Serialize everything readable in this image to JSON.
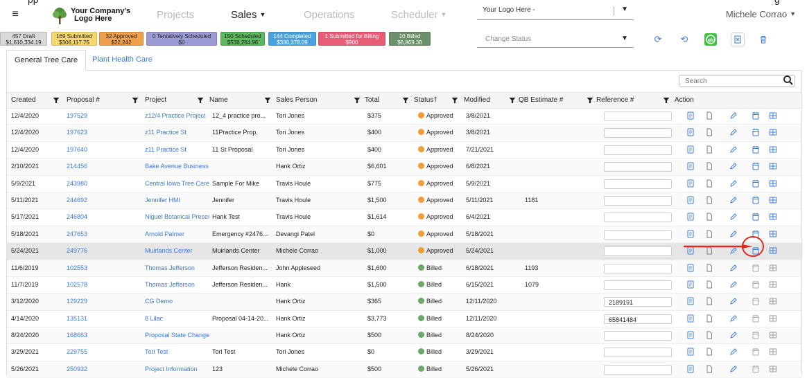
{
  "top_cut_text": [
    "pp",
    "g"
  ],
  "nav": {
    "logo_line1": "Your Company's",
    "logo_line2": "Logo Here",
    "links": [
      {
        "label": "Projects",
        "active": false,
        "caret": false
      },
      {
        "label": "Sales",
        "active": true,
        "caret": true
      },
      {
        "label": "Operations",
        "active": false,
        "caret": false
      },
      {
        "label": "Scheduler",
        "active": false,
        "caret": true
      }
    ],
    "logo_select_value": "Your Logo Here -",
    "user_name": "Michele Corrao"
  },
  "badges": [
    {
      "line1": "457 Draft",
      "line2": "$1,610,334.19",
      "bg": "#d9d9d9",
      "fg": "#222"
    },
    {
      "line1": "169 Submitted",
      "line2": "$306,117.75",
      "bg": "#f5d76e",
      "fg": "#222"
    },
    {
      "line1": "32 Approved",
      "line2": "$22,242",
      "bg": "#f0a04b",
      "fg": "#222"
    },
    {
      "line1": "0 Tentatively Scheduled",
      "line2": "$0",
      "bg": "#9b9bd6",
      "fg": "#222"
    },
    {
      "line1": "150 Scheduled",
      "line2": "$538,264.96",
      "bg": "#5cb85c",
      "fg": "#222"
    },
    {
      "line1": "144 Completed",
      "line2": "$330,378.09",
      "bg": "#4aa3df",
      "fg": "#fff"
    },
    {
      "line1": "1 Submitted for Billing",
      "line2": "$900",
      "bg": "#e85d75",
      "fg": "#fff"
    },
    {
      "line1": "10 Billed",
      "line2": "$8,869.38",
      "bg": "#6b8e6b",
      "fg": "#fff"
    }
  ],
  "change_status_placeholder": "Change Status",
  "tabs": [
    {
      "label": "General Tree Care",
      "active": true
    },
    {
      "label": "Plant Health Care",
      "active": false
    }
  ],
  "search_placeholder": "Search",
  "columns": [
    "Created",
    "Proposal #",
    "Project",
    "Name",
    "Sales Person",
    "Total",
    "Status†",
    "Modified",
    "QB Estimate #",
    "Reference #",
    "Action"
  ],
  "status_colors": {
    "Approved": "#f39c34",
    "Billed": "#6aa86a"
  },
  "rows": [
    {
      "created": "12/4/2020",
      "proposal": "197529",
      "project": "z12/4 Practice Project",
      "name": "12_4 practice pro...",
      "sales": "Tori Jones",
      "total": "$375",
      "status": "Approved",
      "modified": "3/8/2021",
      "qb": "",
      "ref": ""
    },
    {
      "created": "12/4/2020",
      "proposal": "197623",
      "project": "z11 Practice St",
      "name": "11Practice Prop.",
      "sales": "Tori Jones",
      "total": "$400",
      "status": "Approved",
      "modified": "3/8/2021",
      "qb": "",
      "ref": ""
    },
    {
      "created": "12/4/2020",
      "proposal": "197640",
      "project": "z11 Practice St",
      "name": "11 St Proposal",
      "sales": "Tori Jones",
      "total": "$400",
      "status": "Approved",
      "modified": "7/21/2021",
      "qb": "",
      "ref": ""
    },
    {
      "created": "2/10/2021",
      "proposal": "214456",
      "project": "Bake Avenue Business",
      "name": "",
      "sales": "Hank Ortiz",
      "total": "$6,601",
      "status": "Approved",
      "modified": "6/8/2021",
      "qb": "",
      "ref": ""
    },
    {
      "created": "5/9/2021",
      "proposal": "243980",
      "project": "Central Iowa Tree Care",
      "name": "Sample For Mike",
      "sales": "Travis Houle",
      "total": "$775",
      "status": "Approved",
      "modified": "5/9/2021",
      "qb": "",
      "ref": ""
    },
    {
      "created": "5/11/2021",
      "proposal": "244692",
      "project": "Jennifer HMI",
      "name": "Jennifer",
      "sales": "Travis Houle",
      "total": "$1,500",
      "status": "Approved",
      "modified": "5/11/2021",
      "qb": "1181",
      "ref": ""
    },
    {
      "created": "5/17/2021",
      "proposal": "246804",
      "project": "Niguel Botanical Preserve",
      "name": "Hank Test",
      "sales": "Travis Houle",
      "total": "$1,614",
      "status": "Approved",
      "modified": "6/4/2021",
      "qb": "",
      "ref": ""
    },
    {
      "created": "5/18/2021",
      "proposal": "247653",
      "project": "Arnold Palmer",
      "name": "Emergency #2476...",
      "sales": "Devangi Patel",
      "total": "$0",
      "status": "Approved",
      "modified": "5/18/2021",
      "qb": "",
      "ref": ""
    },
    {
      "created": "5/24/2021",
      "proposal": "249776",
      "project": "Muirlands Center",
      "name": "Muirlands Center",
      "sales": "Michele Corrao",
      "total": "$1,000",
      "status": "Approved",
      "modified": "5/24/2021",
      "qb": "",
      "ref": ""
    },
    {
      "created": "11/6/2019",
      "proposal": "102553",
      "project": "Thomas Jefferson",
      "name": "Jefferson Residen...",
      "sales": "John Appleseed",
      "total": "$1,600",
      "status": "Billed",
      "modified": "6/18/2021",
      "qb": "1193",
      "ref": ""
    },
    {
      "created": "11/7/2019",
      "proposal": "102578",
      "project": "Thomas Jefferson",
      "name": "Jefferson Residen...",
      "sales": "Hank",
      "total": "$1,500",
      "status": "Billed",
      "modified": "6/15/2021",
      "qb": "1079",
      "ref": ""
    },
    {
      "created": "3/12/2020",
      "proposal": "129229",
      "project": "CG Demo",
      "name": "",
      "sales": "Hank Ortiz",
      "total": "$365",
      "status": "Billed",
      "modified": "12/11/2020",
      "qb": "",
      "ref": "2189191"
    },
    {
      "created": "4/14/2020",
      "proposal": "135131",
      "project": "8 Lilac",
      "name": "Proposal 04-14-20...",
      "sales": "Hank Ortiz",
      "total": "$3,773",
      "status": "Billed",
      "modified": "12/11/2020",
      "qb": "",
      "ref": "65841484"
    },
    {
      "created": "8/24/2020",
      "proposal": "168663",
      "project": "Proposal State Change",
      "name": "",
      "sales": "Hank Ortiz",
      "total": "$500",
      "status": "Billed",
      "modified": "8/24/2020",
      "qb": "",
      "ref": ""
    },
    {
      "created": "3/29/2021",
      "proposal": "229755",
      "project": "Tori Test",
      "name": "Tori Test",
      "sales": "Tori Jones",
      "total": "$0",
      "status": "Billed",
      "modified": "3/29/2021",
      "qb": "",
      "ref": ""
    },
    {
      "created": "5/26/2021",
      "proposal": "250932",
      "project": "Project Information",
      "name": "123",
      "sales": "Michele Corrao",
      "total": "$500",
      "status": "Billed",
      "modified": "5/26/2021",
      "qb": "",
      "ref": ""
    }
  ]
}
